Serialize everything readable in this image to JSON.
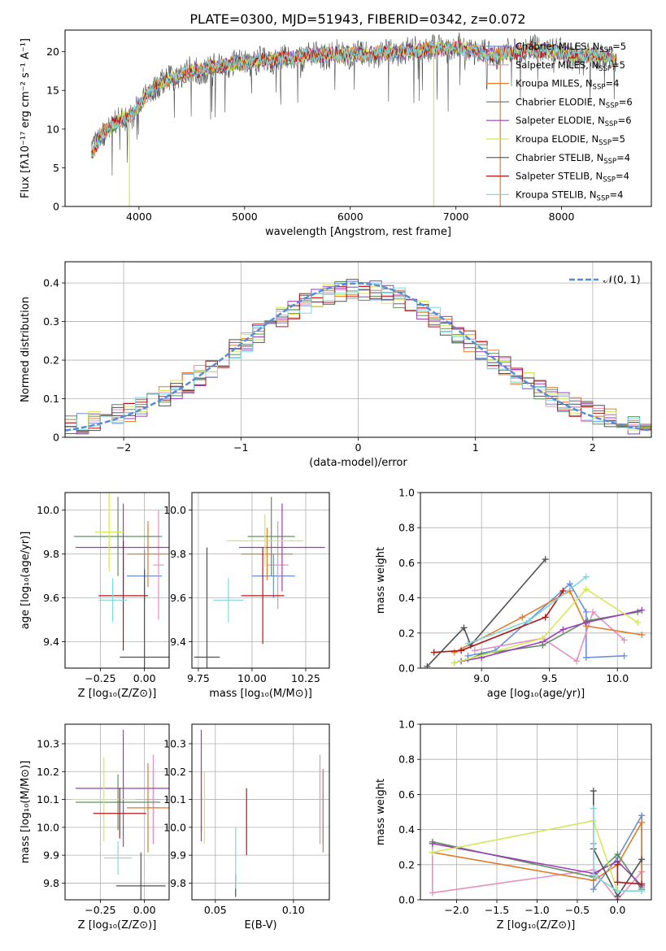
{
  "figure_title": "PLATE=0300, MJD=51943, FIBERID=0342, z=0.072",
  "model_colors": [
    "#6a8fd8",
    "#e690c0",
    "#e07c2c",
    "#5f8f60",
    "#9a3fb8",
    "#d2e85a",
    "#505050",
    "#b01818",
    "#80d8dc"
  ],
  "chart_data": [
    {
      "id": "spectrum",
      "type": "line",
      "xlabel": "wavelength [Angstrom, rest frame]",
      "ylabel": "Flux [fλ10⁻¹⁷ erg cm⁻² s⁻¹ A⁻¹]",
      "xlim": [
        3300,
        8850
      ],
      "ylim": [
        0,
        22.8
      ],
      "xticks": [
        4000,
        5000,
        6000,
        7000,
        8000
      ],
      "yticks": [
        0,
        5,
        10,
        15,
        20
      ],
      "grid": false,
      "legend_position": "right",
      "legend": [
        {
          "label": "Chabrier MILES, N",
          "sub": "SSP",
          "tail": "=5"
        },
        {
          "label": "Salpeter MILES, N",
          "sub": "SSP",
          "tail": "=5"
        },
        {
          "label": "Kroupa MILES, N",
          "sub": "SSP",
          "tail": "=4"
        },
        {
          "label": "Chabrier ELODIE, N",
          "sub": "SSP",
          "tail": "=6"
        },
        {
          "label": "Salpeter ELODIE, N",
          "sub": "SSP",
          "tail": "=6"
        },
        {
          "label": "Kroupa ELODIE, N",
          "sub": "SSP",
          "tail": "=5"
        },
        {
          "label": "Chabrier STELIB, N",
          "sub": "SSP",
          "tail": "=4"
        },
        {
          "label": "Salpeter STELIB, N",
          "sub": "SSP",
          "tail": "=4"
        },
        {
          "label": "Kroupa STELIB, N",
          "sub": "SSP",
          "tail": "=4"
        }
      ],
      "continuum": [
        [
          3560,
          7.0
        ],
        [
          3650,
          9.5
        ],
        [
          3750,
          10.5
        ],
        [
          3850,
          11.5
        ],
        [
          3950,
          12.0
        ],
        [
          4050,
          14.0
        ],
        [
          4150,
          15.5
        ],
        [
          4300,
          16.5
        ],
        [
          4500,
          17.5
        ],
        [
          4700,
          18.0
        ],
        [
          4900,
          18.5
        ],
        [
          5100,
          18.8
        ],
        [
          5300,
          19.0
        ],
        [
          5500,
          19.3
        ],
        [
          5700,
          19.6
        ],
        [
          5900,
          19.7
        ],
        [
          6100,
          19.6
        ],
        [
          6300,
          19.8
        ],
        [
          6500,
          20.0
        ],
        [
          6700,
          20.3
        ],
        [
          6900,
          20.4
        ],
        [
          7100,
          20.5
        ],
        [
          7300,
          19.5
        ],
        [
          7500,
          19.8
        ],
        [
          7700,
          20.3
        ],
        [
          7900,
          20.2
        ],
        [
          8100,
          19.5
        ],
        [
          8300,
          19.6
        ],
        [
          8500,
          19.0
        ]
      ],
      "model_range": [
        3550,
        8520
      ],
      "spikes": [
        [
          3910,
          0.0
        ],
        [
          6790,
          0.0
        ],
        [
          7420,
          0.0
        ]
      ]
    },
    {
      "id": "residual-histogram",
      "type": "step",
      "xlabel": "(data-model)/error",
      "ylabel": "Normed distribution",
      "xlim": [
        -2.5,
        2.5
      ],
      "ylim": [
        0,
        0.455
      ],
      "xticks": [
        -2,
        -1,
        0,
        1,
        2
      ],
      "yticks": [
        0.0,
        0.1,
        0.2,
        0.3,
        0.4
      ],
      "grid": true,
      "bin_width": 0.1,
      "reference_curve": {
        "label": "𝒩(0, 1)",
        "mean": 0,
        "sigma": 1,
        "legend_position": "top-right"
      }
    },
    {
      "id": "age-vs-metallicity",
      "type": "errorbar",
      "xlabel": "Z [log₁₀(Z/Z⊙)]",
      "ylabel": "age  [log₁₀(age/yr)]",
      "xlim": [
        -0.45,
        0.14
      ],
      "ylim": [
        9.28,
        10.08
      ],
      "xticks": [
        -0.25,
        0.0
      ],
      "xtick_labels": [
        "−0.25",
        "0.00"
      ],
      "yticks": [
        9.4,
        9.6,
        9.8,
        10.0
      ],
      "ytick_labels": [
        "9.4",
        "9.6",
        "9.8",
        "10.0"
      ],
      "grid": true,
      "points": [
        {
          "x": 0.0,
          "xerr": 0.1,
          "y": 9.7,
          "yerr": 0.12
        },
        {
          "x": 0.08,
          "xerr": 0.03,
          "y": 9.75,
          "yerr": 0.25
        },
        {
          "x": 0.02,
          "xerr": 0.12,
          "y": 9.8,
          "yerr": 0.15
        },
        {
          "x": -0.15,
          "xerr": 0.25,
          "y": 9.88,
          "yerr": 0.18
        },
        {
          "x": -0.12,
          "xerr": 0.27,
          "y": 9.83,
          "yerr": 0.2
        },
        {
          "x": -0.2,
          "xerr": 0.08,
          "y": 9.9,
          "yerr": 0.18
        },
        {
          "x": 0.0,
          "xerr": 0.14,
          "y": 9.33,
          "yerr": 0.4
        },
        {
          "x": -0.12,
          "xerr": 0.14,
          "y": 9.61,
          "yerr": 0.25
        },
        {
          "x": -0.18,
          "xerr": 0.08,
          "y": 9.59,
          "yerr": 0.1
        }
      ]
    },
    {
      "id": "age-vs-mass",
      "type": "errorbar",
      "xlabel": "mass [log₁₀(M/M⊙)]",
      "ylabel": "",
      "xlim": [
        9.72,
        10.36
      ],
      "ylim": [
        9.28,
        10.08
      ],
      "xticks": [
        9.75,
        10.0,
        10.25
      ],
      "xtick_labels": [
        "9.75",
        "10.00",
        "10.25"
      ],
      "yticks": [
        9.4,
        9.6,
        9.8,
        10.0
      ],
      "ytick_labels": [
        "9.4",
        "9.6",
        "9.8",
        "10.0"
      ],
      "grid": true,
      "points": [
        {
          "x": 10.1,
          "xerr": 0.1,
          "y": 9.7,
          "yerr": 0.1
        },
        {
          "x": 10.12,
          "xerr": 0.05,
          "y": 9.75,
          "yerr": 0.2
        },
        {
          "x": 10.07,
          "xerr": 0.12,
          "y": 9.8,
          "yerr": 0.12
        },
        {
          "x": 10.09,
          "xerr": 0.11,
          "y": 9.88,
          "yerr": 0.18
        },
        {
          "x": 10.14,
          "xerr": 0.2,
          "y": 9.83,
          "yerr": 0.2
        },
        {
          "x": 10.06,
          "xerr": 0.18,
          "y": 9.86,
          "yerr": 0.12
        },
        {
          "x": 9.79,
          "xerr": 0.06,
          "y": 9.33,
          "yerr": 0.5
        },
        {
          "x": 10.05,
          "xerr": 0.1,
          "y": 9.61,
          "yerr": 0.22
        },
        {
          "x": 9.89,
          "xerr": 0.07,
          "y": 9.59,
          "yerr": 0.1
        }
      ]
    },
    {
      "id": "weight-vs-age",
      "type": "line",
      "xlabel": "age  [log₁₀(age/yr)]",
      "ylabel": "mass weight",
      "xlim": [
        8.55,
        10.25
      ],
      "ylim": [
        0.0,
        1.0
      ],
      "xticks": [
        9.0,
        9.5,
        10.0
      ],
      "xtick_labels": [
        "9.0",
        "9.5",
        "10.0"
      ],
      "yticks": [
        0.0,
        0.2,
        0.4,
        0.6,
        0.8,
        1.0
      ],
      "ytick_labels": [
        "0.0",
        "0.2",
        "0.4",
        "0.6",
        "0.8",
        "1.0"
      ],
      "grid": true,
      "series": [
        {
          "x": [
            8.9,
            9.1,
            9.65,
            9.77,
            9.77,
            10.05
          ],
          "y": [
            0.07,
            0.1,
            0.48,
            0.32,
            0.06,
            0.07
          ]
        },
        {
          "x": [
            8.95,
            9.45,
            9.7,
            9.82,
            10.05
          ],
          "y": [
            0.1,
            0.17,
            0.04,
            0.32,
            0.16
          ]
        },
        {
          "x": [
            8.8,
            9.3,
            9.65,
            9.77,
            10.18
          ],
          "y": [
            0.09,
            0.29,
            0.44,
            0.24,
            0.19
          ]
        },
        {
          "x": [
            8.8,
            8.9,
            9.0,
            9.45,
            9.78,
            10.15
          ],
          "y": [
            0.03,
            0.05,
            0.08,
            0.13,
            0.27,
            0.32
          ]
        },
        {
          "x": [
            8.85,
            9.0,
            9.45,
            9.6,
            9.77,
            10.18
          ],
          "y": [
            0.04,
            0.06,
            0.15,
            0.22,
            0.26,
            0.33
          ]
        },
        {
          "x": [
            8.8,
            9.45,
            9.77,
            10.15
          ],
          "y": [
            0.03,
            0.17,
            0.45,
            0.26
          ]
        },
        {
          "x": [
            8.6,
            8.87,
            8.92,
            9.47
          ],
          "y": [
            0.01,
            0.23,
            0.13,
            0.62
          ]
        },
        {
          "x": [
            8.65,
            8.85,
            9.47,
            9.6
          ],
          "y": [
            0.09,
            0.1,
            0.29,
            0.44
          ]
        },
        {
          "x": [
            8.9,
            9.35,
            9.77
          ],
          "y": [
            0.14,
            0.27,
            0.52
          ]
        }
      ]
    },
    {
      "id": "mass-vs-metallicity",
      "type": "errorbar",
      "xlabel": "Z [log₁₀(Z/Z⊙)]",
      "ylabel": "mass [log₁₀(M/M⊙)]",
      "xlim": [
        -0.45,
        0.14
      ],
      "ylim": [
        9.74,
        10.37
      ],
      "xticks": [
        -0.25,
        0.0
      ],
      "xtick_labels": [
        "−0.25",
        "0.00"
      ],
      "yticks": [
        9.8,
        9.9,
        10.0,
        10.1,
        10.2,
        10.3
      ],
      "ytick_labels": [
        "9.8",
        "9.9",
        "10.0",
        "10.1",
        "10.2",
        "10.3"
      ],
      "grid": true,
      "points": [
        {
          "x": 0.05,
          "xerr": 0.03,
          "y": 10.07,
          "yerr": 0.13
        },
        {
          "x": 0.05,
          "xerr": 0.04,
          "y": 10.1,
          "yerr": 0.16
        },
        {
          "x": 0.02,
          "xerr": 0.12,
          "y": 10.07,
          "yerr": 0.16
        },
        {
          "x": -0.15,
          "xerr": 0.24,
          "y": 10.09,
          "yerr": 0.1
        },
        {
          "x": -0.12,
          "xerr": 0.27,
          "y": 10.14,
          "yerr": 0.21
        },
        {
          "x": -0.23,
          "xerr": 0.18,
          "y": 10.1,
          "yerr": 0.15
        },
        {
          "x": -0.02,
          "xerr": 0.14,
          "y": 9.79,
          "yerr": 0.12
        },
        {
          "x": -0.14,
          "xerr": 0.15,
          "y": 10.05,
          "yerr": 0.09
        },
        {
          "x": -0.15,
          "xerr": 0.08,
          "y": 9.89,
          "yerr": 0.06
        }
      ]
    },
    {
      "id": "mass-vs-ebv",
      "type": "errorbar",
      "xlabel": "E(B-V)",
      "ylabel": "",
      "xlim": [
        0.035,
        0.123
      ],
      "ylim": [
        9.74,
        10.37
      ],
      "xticks": [
        0.05,
        0.1
      ],
      "xtick_labels": [
        "0.05",
        "0.10"
      ],
      "yticks": [
        9.8,
        9.9,
        10.0,
        10.1,
        10.2,
        10.3
      ],
      "ytick_labels": [
        "9.8",
        "9.9",
        "10.0",
        "10.1",
        "10.2",
        "10.3"
      ],
      "grid": true,
      "points": [
        {
          "x": 0.119,
          "y": 10.07,
          "yerr": 0.13
        },
        {
          "x": 0.117,
          "y": 10.1,
          "yerr": 0.16
        },
        {
          "x": 0.119,
          "y": 10.06,
          "yerr": 0.15
        },
        {
          "x": 0.041,
          "y": 10.09,
          "yerr": 0.11
        },
        {
          "x": 0.041,
          "y": 10.15,
          "yerr": 0.2
        },
        {
          "x": 0.043,
          "y": 10.07,
          "yerr": 0.13
        },
        {
          "x": 0.063,
          "y": 9.79,
          "yerr": 0.04
        },
        {
          "x": 0.07,
          "y": 10.02,
          "yerr": 0.12
        },
        {
          "x": 0.063,
          "y": 9.89,
          "yerr": 0.11
        }
      ]
    },
    {
      "id": "weight-vs-metallicity",
      "type": "line",
      "xlabel": "Z [log₁₀(Z/Z⊙)]",
      "ylabel": "mass weight",
      "xlim": [
        -2.45,
        0.42
      ],
      "ylim": [
        0.0,
        1.0
      ],
      "xticks": [
        -2.0,
        -1.5,
        -1.0,
        -0.5,
        0.0
      ],
      "xtick_labels": [
        "−2.0",
        "−1.5",
        "−1.0",
        "−0.5",
        "0.0"
      ],
      "yticks": [
        0.0,
        0.2,
        0.4,
        0.6,
        0.8,
        1.0
      ],
      "ytick_labels": [
        "0.0",
        "0.2",
        "0.4",
        "0.6",
        "0.8",
        "1.0"
      ],
      "grid": true,
      "series": [
        {
          "x": [
            -0.3,
            -0.3,
            0.0,
            0.3,
            0.3
          ],
          "y": [
            0.32,
            0.06,
            0.24,
            0.48,
            0.07
          ]
        },
        {
          "x": [
            -2.3,
            -2.3,
            -0.3,
            0.0,
            0.3
          ],
          "y": [
            0.32,
            0.04,
            0.17,
            0.0,
            0.16
          ]
        },
        {
          "x": [
            -2.3,
            -0.3,
            0.0,
            0.3,
            0.3
          ],
          "y": [
            0.27,
            0.11,
            0.2,
            0.44,
            0.09
          ]
        },
        {
          "x": [
            -2.3,
            -0.3,
            0.0,
            0.3
          ],
          "y": [
            0.33,
            0.13,
            0.26,
            0.06
          ]
        },
        {
          "x": [
            -2.3,
            -0.3,
            0.0,
            0.3
          ],
          "y": [
            0.32,
            0.15,
            0.22,
            0.08
          ]
        },
        {
          "x": [
            -2.3,
            -0.3,
            0.0,
            0.3
          ],
          "y": [
            0.27,
            0.45,
            0.05,
            0.05
          ]
        },
        {
          "x": [
            -0.3,
            -0.3,
            0.0,
            0.3
          ],
          "y": [
            0.62,
            0.29,
            0.02,
            0.23
          ]
        },
        {
          "x": [
            0.0,
            0.0,
            0.3
          ],
          "y": [
            0.2,
            0.1,
            0.09
          ]
        },
        {
          "x": [
            -0.3,
            -0.3,
            0.0,
            0.3
          ],
          "y": [
            0.52,
            0.14,
            0.05,
            0.05
          ]
        }
      ]
    }
  ]
}
